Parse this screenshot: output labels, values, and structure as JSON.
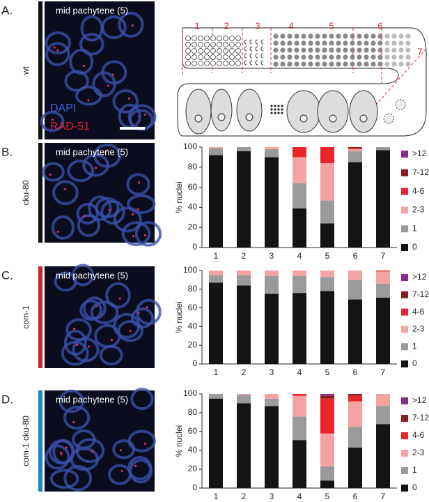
{
  "panels": [
    {
      "letter": "A.",
      "genotype": "wt",
      "image_label": "mid pachytene (5)",
      "stains": [
        "DAPI",
        "RAD-51"
      ]
    },
    {
      "letter": "B.",
      "genotype": "cku-80",
      "image_label": "mid pachytene (5)"
    },
    {
      "letter": "C.",
      "genotype": "com-1",
      "image_label": "mid pachytene (5)"
    },
    {
      "letter": "D.",
      "genotype": "com-1  cku-80",
      "image_label": "mid pachytene (5)"
    }
  ],
  "diagram": {
    "zones": [
      "1",
      "2",
      "3",
      "4",
      "5",
      "6",
      "7"
    ]
  },
  "chart_data": [
    {
      "type": "bar",
      "stacked": true,
      "ylabel": "% nuclei",
      "categories": [
        "1",
        "2",
        "3",
        "4",
        "5",
        "6",
        "7"
      ],
      "ylim": [
        0,
        100
      ],
      "yticks": [
        0,
        20,
        40,
        60,
        80,
        100
      ],
      "series": [
        {
          "name": "0",
          "color": "#141414",
          "values": [
            92,
            96,
            90,
            39,
            24,
            85,
            97
          ]
        },
        {
          "name": "1",
          "color": "#9a9a9a",
          "values": [
            7,
            4,
            8,
            25,
            23,
            11,
            3
          ]
        },
        {
          "name": "2-3",
          "color": "#f4a3a3",
          "values": [
            1,
            0,
            2,
            26,
            37,
            2,
            0
          ]
        },
        {
          "name": "4-6",
          "color": "#e8262a",
          "values": [
            0,
            0,
            0,
            10,
            16,
            1,
            0
          ]
        },
        {
          "name": "7-12",
          "color": "#8e1c1c",
          "values": [
            0,
            0,
            0,
            0,
            0,
            1,
            0
          ]
        },
        {
          "name": ">12",
          "color": "#8a2b8c",
          "values": [
            0,
            0,
            0,
            0,
            0,
            0,
            0
          ]
        }
      ]
    },
    {
      "type": "bar",
      "stacked": true,
      "ylabel": "% nuclei",
      "categories": [
        "1",
        "2",
        "3",
        "4",
        "5",
        "6",
        "7"
      ],
      "ylim": [
        0,
        100
      ],
      "yticks": [
        0,
        20,
        40,
        60,
        80,
        100
      ],
      "series": [
        {
          "name": "0",
          "color": "#141414",
          "values": [
            87,
            84,
            75,
            76,
            78,
            69,
            71
          ]
        },
        {
          "name": "1",
          "color": "#9a9a9a",
          "values": [
            8,
            11,
            19,
            18,
            15,
            21,
            15
          ]
        },
        {
          "name": "2-3",
          "color": "#f4a3a3",
          "values": [
            5,
            5,
            6,
            6,
            7,
            10,
            13
          ]
        },
        {
          "name": "4-6",
          "color": "#e8262a",
          "values": [
            0,
            0,
            0,
            0,
            0,
            0,
            1
          ]
        },
        {
          "name": "7-12",
          "color": "#8e1c1c",
          "values": [
            0,
            0,
            0,
            0,
            0,
            0,
            0
          ]
        },
        {
          "name": ">12",
          "color": "#8a2b8c",
          "values": [
            0,
            0,
            0,
            0,
            0,
            0,
            0
          ]
        }
      ]
    },
    {
      "type": "bar",
      "stacked": true,
      "ylabel": "% nuclei",
      "categories": [
        "1",
        "2",
        "3",
        "4",
        "5",
        "6",
        "7"
      ],
      "ylim": [
        0,
        100
      ],
      "yticks": [
        0,
        20,
        40,
        60,
        80,
        100
      ],
      "series": [
        {
          "name": "0",
          "color": "#141414",
          "values": [
            95,
            90,
            87,
            51,
            8,
            43,
            68
          ]
        },
        {
          "name": "1",
          "color": "#9a9a9a",
          "values": [
            5,
            9,
            8,
            25,
            15,
            22,
            19
          ]
        },
        {
          "name": "2-3",
          "color": "#f4a3a3",
          "values": [
            0,
            1,
            5,
            22,
            35,
            27,
            13
          ]
        },
        {
          "name": "4-6",
          "color": "#e8262a",
          "values": [
            0,
            0,
            0,
            2,
            37,
            6,
            0
          ]
        },
        {
          "name": "7-12",
          "color": "#8e1c1c",
          "values": [
            0,
            0,
            0,
            0,
            3,
            2,
            0
          ]
        },
        {
          "name": ">12",
          "color": "#8a2b8c",
          "values": [
            0,
            0,
            0,
            0,
            2,
            0,
            0
          ]
        }
      ]
    }
  ]
}
